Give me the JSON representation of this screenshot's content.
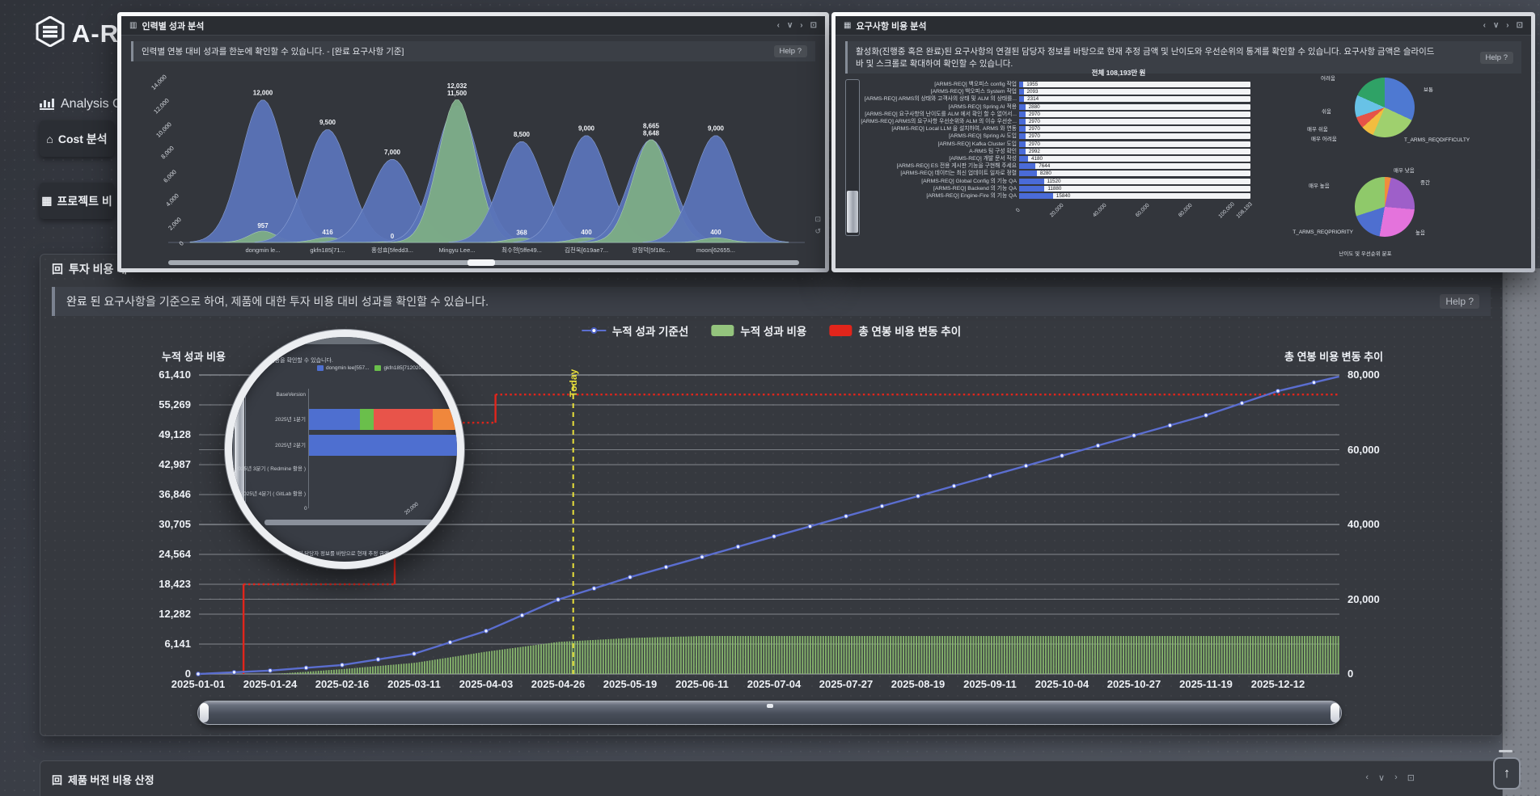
{
  "logo": {
    "text": "A-RMS"
  },
  "sidebar": {
    "section": "Analysis C",
    "items": [
      {
        "icon": "home-icon",
        "label": "Cost 분석"
      },
      {
        "icon": "table-icon",
        "label": "프로젝트 비"
      }
    ]
  },
  "icons": {
    "chev_left": "‹",
    "chev_down": "∨",
    "chev_right": "›",
    "expand": "⊡",
    "reset": "↺",
    "up_arrow": "↑",
    "home": "⌂",
    "table": "▦",
    "chart": "▥",
    "panel": "回"
  },
  "panel_personnel": {
    "title": "인력별 성과 분석",
    "description": "인력별 연봉 대비 성과를 한눈에 확인할 수 있습니다. - [완료 요구사항 기준]",
    "help": "Help ?",
    "chart_data": {
      "type": "area",
      "subtype": "ridgeline",
      "ymax": 14000,
      "y_ticks": [
        "0",
        "2,000",
        "4,000",
        "6,000",
        "8,000",
        "10,000",
        "12,000",
        "14,000"
      ],
      "categories": [
        "dongmin le...",
        "gkfn185[71...",
        "홍성효[5fedd3...",
        "Mingyu Lee...",
        "최수현[5ffe49...",
        "김천욱[619ae7...",
        "양형덕[5f18c...",
        "moon[62655..."
      ],
      "series": [
        {
          "name": "연봉",
          "color": "#5b74b8",
          "values": [
            12000,
            9500,
            7000,
            11500,
            8500,
            9000,
            8648,
            9000
          ],
          "labels": [
            "12,000",
            "9,500",
            "7,000",
            "11,500",
            "8,500",
            "9,000",
            "8,648",
            "9,000"
          ]
        },
        {
          "name": "성과",
          "color": "#7cab85",
          "values": [
            957,
            416,
            0,
            12032,
            368,
            400,
            8665,
            400
          ],
          "labels": [
            "957",
            "416",
            "0",
            "12,032",
            "368",
            "400",
            "8,665",
            "400"
          ]
        }
      ]
    }
  },
  "panel_requirements": {
    "title": "요구사항 비용 분석",
    "description": "활성화(진행중 혹은 완료)된 요구사항의 연결된 담당자 정보를 바탕으로 현재 추정 금액 및 난이도와 우선순위의 통계를 확인할 수 있습니다. 요구사항 금액은 슬라이드 바 및 스크롤로 확대하여 확인할 수 있습니다.",
    "help": "Help ?",
    "total_label": "전체 108,193만 원",
    "caption": "난이도 및 우선순위 분포",
    "chart_data": {
      "type": "bar",
      "orientation": "horizontal",
      "xmax": 108193,
      "x_ticks": [
        "0",
        "20,000",
        "40,000",
        "60,000",
        "80,000",
        "100,000",
        "108,193"
      ],
      "x_tick_values": [
        0,
        20000,
        40000,
        60000,
        80000,
        100000,
        108193
      ],
      "items": [
        {
          "label": "[ARMS-REQ] 백오피스 config 작업",
          "value": 1955
        },
        {
          "label": "[ARMS-REQ] 백오피스 System 작업",
          "value": 2093
        },
        {
          "label": "[ARMS-REQ] ARMS의 상태와 고객사의 상태 및 ALM 의 상태를...",
          "value": 2314
        },
        {
          "label": "[ARMS-REQ] Spring AI 적용",
          "value": 2880
        },
        {
          "label": "[ARMS-REQ] 요구사항의 난이도를 ALM 에서 확인 할 수 없어서...",
          "value": 2970
        },
        {
          "label": "[ARMS-REQ] ARMS의 요구사항 우선순위와 ALM 의 이슈 우선순...",
          "value": 2970
        },
        {
          "label": "[ARMS-REQ] Local LLM 을 설치하여, ARMS 와 연동",
          "value": 2970
        },
        {
          "label": "[ARMS-REQ] Spring Ai 도입",
          "value": 2970
        },
        {
          "label": "[ARMS-REQ] Kafka Cluster 도입",
          "value": 2970
        },
        {
          "label": "A-RMS 팀 구성 확인",
          "value": 2992
        },
        {
          "label": "[ARMS-REQ] 개발 문서 작성",
          "value": 4180
        },
        {
          "label": "[ARMS-REQ] ES 전용 게시판 기능을 구현해 주세요",
          "value": 7644
        },
        {
          "label": "[ARMS-REQ] 데이터는 최신 업데이트 일자로 정렬",
          "value": 8280
        },
        {
          "label": "[ARMS-REQ] Global Config 의 기능 QA",
          "value": 11520
        },
        {
          "label": "[ARMS-REQ] Backend 의 기능 QA",
          "value": 11880
        },
        {
          "label": "[ARMS-REQ] Engine-Fire 의 기능 QA",
          "value": 15840
        }
      ]
    },
    "pies": [
      {
        "series_label": "T_ARMS_REQDIFFICULTY",
        "slices": [
          {
            "label": "보통",
            "color": "#4e79d2",
            "from": 0,
            "to": 115
          },
          {
            "label": "",
            "color": "#9fd06e",
            "from": 115,
            "to": 203
          },
          {
            "label": "매우 어려움",
            "color": "#f2bd3f",
            "from": 203,
            "to": 228
          },
          {
            "label": "매우 쉬움",
            "color": "#e65348",
            "from": 228,
            "to": 251
          },
          {
            "label": "쉬움",
            "color": "#68c2e6",
            "from": 251,
            "to": 294
          },
          {
            "label": "어려움",
            "color": "#2fa266",
            "from": 294,
            "to": 360
          }
        ]
      },
      {
        "series_label": "T_ARMS_REQPRIORITY",
        "slices": [
          {
            "label": "매우 낮음",
            "color": "#f08c3c",
            "from": 0,
            "to": 12
          },
          {
            "label": "중간",
            "color": "#9e5fc9",
            "from": 12,
            "to": 95
          },
          {
            "label": "높음",
            "color": "#e473dc",
            "from": 95,
            "to": 190
          },
          {
            "label": "",
            "color": "#4e6fd0",
            "from": 190,
            "to": 252
          },
          {
            "label": "매우 높음",
            "color": "#8fc96a",
            "from": 252,
            "to": 360
          }
        ]
      }
    ]
  },
  "panel_investment": {
    "title": "투자 비용 대",
    "description": "완료 된 요구사항을 기준으로 하여, 제품에 대한 투자 비용 대비 성과를 확인할 수 있습니다.",
    "help": "Help ?",
    "today_label": "Today",
    "legend": [
      {
        "label": "누적 성과 기준선",
        "type": "line",
        "color": "#5b6ed0"
      },
      {
        "label": "누적 성과 비용",
        "type": "box",
        "color": "#94c47d"
      },
      {
        "label": "총 연봉 비용 변동 추이",
        "type": "box",
        "color": "#e2251b"
      }
    ],
    "chart_data": {
      "type": "line",
      "left_axis": {
        "title": "누적 성과 비용",
        "max": 61410,
        "tick_labels": [
          "61,410",
          "55,269",
          "49,128",
          "42,987",
          "36,846",
          "30,705",
          "24,564",
          "18,423",
          "12,282",
          "6,141",
          "0"
        ],
        "tick_values": [
          61410,
          55269,
          49128,
          42987,
          36846,
          30705,
          24564,
          18423,
          12282,
          6141,
          0
        ]
      },
      "right_axis": {
        "title": "총 연봉 비용 변동 추이",
        "max": 80000,
        "tick_labels": [
          "80,000",
          "60,000",
          "40,000",
          "20,000",
          "0"
        ],
        "tick_values": [
          80000,
          60000,
          40000,
          20000,
          0
        ]
      },
      "x_dates": [
        "2025-01-01",
        "2025-01-24",
        "2025-02-16",
        "2025-03-11",
        "2025-04-03",
        "2025-04-26",
        "2025-05-19",
        "2025-06-11",
        "2025-07-04",
        "2025-07-27",
        "2025-08-19",
        "2025-09-11",
        "2025-10-04",
        "2025-10-27",
        "2025-11-19",
        "2025-12-12"
      ],
      "today_index": 5.21,
      "series": [
        {
          "name": "누적 성과 기준선",
          "axis": "right",
          "color": "#5b6ed0",
          "points": [
            [
              0,
              0
            ],
            [
              1,
              900
            ],
            [
              2,
              2400
            ],
            [
              3,
              5400
            ],
            [
              4,
              11500
            ],
            [
              5,
              19900
            ],
            [
              6,
              25900
            ],
            [
              7,
              31300
            ],
            [
              8,
              36800
            ],
            [
              9,
              42200
            ],
            [
              10,
              47600
            ],
            [
              11,
              53000
            ],
            [
              12,
              58400
            ],
            [
              13,
              63800
            ],
            [
              14,
              69200
            ],
            [
              15,
              75700
            ],
            [
              15.85,
              79600
            ]
          ]
        },
        {
          "name": "누적 성과 비용",
          "axis": "left",
          "color": "#8cbe70",
          "anchors": [
            [
              1.05,
              0
            ],
            [
              2,
              1000
            ],
            [
              3,
              2300
            ],
            [
              4,
              4600
            ],
            [
              5,
              6600
            ],
            [
              6,
              7400
            ],
            [
              7,
              7800
            ],
            [
              15.85,
              7800
            ]
          ]
        },
        {
          "name": "총 연봉 비용 변동 추이",
          "axis": "left",
          "color": "#e2251b",
          "segments": [
            {
              "style": "solid",
              "pts": [
                [
                  0.63,
                  0
                ],
                [
                  0.63,
                  18423
                ]
              ]
            },
            {
              "style": "dotted",
              "pts": [
                [
                  0.63,
                  18423
                ],
                [
                  2.73,
                  18423
                ]
              ]
            },
            {
              "style": "solid",
              "pts": [
                [
                  2.73,
                  18423
                ],
                [
                  2.73,
                  40000
                ],
                [
                  2.77,
                  40000
                ],
                [
                  2.77,
                  48600
                ],
                [
                  2.82,
                  48600
                ],
                [
                  2.82,
                  51600
                ],
                [
                  2.88,
                  51600
                ]
              ]
            },
            {
              "style": "dotted",
              "pts": [
                [
                  2.88,
                  51600
                ],
                [
                  4.13,
                  51600
                ]
              ]
            },
            {
              "style": "solid",
              "pts": [
                [
                  4.13,
                  51600
                ],
                [
                  4.13,
                  57400
                ]
              ]
            },
            {
              "style": "dotted",
              "pts": [
                [
                  4.13,
                  57400
                ],
                [
                  15.85,
                  57400
                ]
              ]
            }
          ]
        }
      ]
    }
  },
  "loupe": {
    "description": "비전 별 비용을 확인할 수 있습니다.",
    "legend": [
      {
        "label": "dongmin lee[557...",
        "color": "#4e6fd0"
      },
      {
        "label": "gkfn185[712020...",
        "color": "#6abf4b"
      },
      {
        "label": "홍성효[5fed...",
        "color": "#f0a832"
      }
    ],
    "rows": [
      "BaseVersion",
      "2025년 1분기",
      "2025년 2분기",
      "2025년 3분기 ( Redmine 활용 )",
      "2025년 4분기 ( GitLab 활용 )"
    ],
    "x_ticks": [
      "0",
      "20,000"
    ],
    "bars": [
      {
        "row": 1,
        "segments": [
          {
            "color": "#4e6fd0",
            "width": 63
          },
          {
            "color": "#6abf4b",
            "width": 17
          },
          {
            "color": "#e8544a",
            "width": 73
          },
          {
            "color": "#f0873c",
            "width": 60
          }
        ]
      },
      {
        "row": 2,
        "segments": [
          {
            "color": "#4e6fd0",
            "width": 190
          }
        ]
      }
    ],
    "bottom_title": "비용 분석",
    "bottom_description": "된 요구사항의 연결된 담당자 정보를 바탕으로 현재 추정 금액 및"
  },
  "panel_version": {
    "title": "제품 버전 비용 산정"
  }
}
